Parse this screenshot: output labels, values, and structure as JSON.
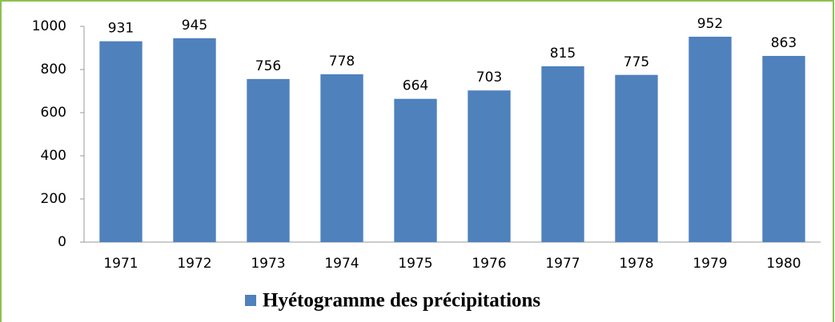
{
  "chart_data": {
    "type": "bar",
    "categories": [
      "1971",
      "1972",
      "1973",
      "1974",
      "1975",
      "1976",
      "1977",
      "1978",
      "1979",
      "1980"
    ],
    "series": [
      {
        "name": "Hyétogramme des précipitations",
        "color": "#4f81bd",
        "values": [
          931,
          945,
          756,
          778,
          664,
          703,
          815,
          775,
          952,
          863
        ]
      }
    ],
    "ylim": [
      0,
      1000
    ],
    "yticks": [
      0,
      200,
      400,
      600,
      800,
      1000
    ],
    "grid": false,
    "legend": "bottom"
  }
}
